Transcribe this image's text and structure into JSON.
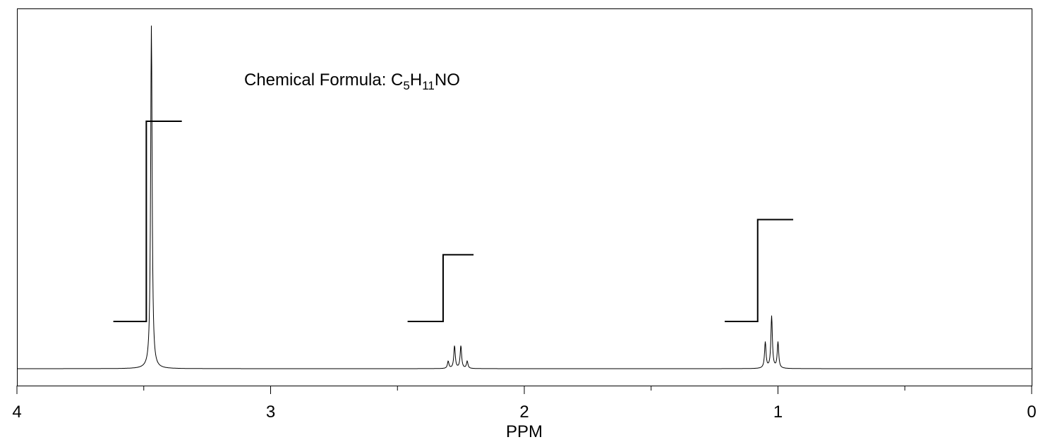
{
  "chart_data": {
    "type": "line",
    "title": "",
    "xlabel": "PPM",
    "ylabel": "",
    "xlim": [
      4,
      0
    ],
    "x_reversed": true,
    "x_ticks": [
      {
        "value": 4,
        "label": "4"
      },
      {
        "value": 3,
        "label": "3"
      },
      {
        "value": 2,
        "label": "2"
      },
      {
        "value": 1,
        "label": "1"
      },
      {
        "value": 0,
        "label": "0"
      }
    ],
    "x_minor_ticks": [
      3.5,
      2.5,
      1.5,
      0.5
    ],
    "annotation": {
      "prefix": "Chemical Formula: C",
      "sub1": "5",
      "mid": "H",
      "sub2": "11",
      "suffix": "NO"
    },
    "series": [
      {
        "peaks": [
          {
            "ppm": 3.47,
            "height": 1.0
          },
          {
            "ppm": 2.3,
            "height": 0.021
          },
          {
            "ppm": 2.275,
            "height": 0.066
          },
          {
            "ppm": 2.25,
            "height": 0.066
          },
          {
            "ppm": 2.225,
            "height": 0.021
          },
          {
            "ppm": 1.05,
            "height": 0.076
          },
          {
            "ppm": 1.025,
            "height": 0.152
          },
          {
            "ppm": 1.0,
            "height": 0.076
          }
        ]
      }
    ],
    "integrals": [
      {
        "start_ppm": 3.62,
        "end_ppm": 3.35,
        "step_ppm": 3.49,
        "value": 0.57
      },
      {
        "start_ppm": 2.46,
        "end_ppm": 2.2,
        "step_ppm": 2.32,
        "value": 0.19
      },
      {
        "start_ppm": 1.21,
        "end_ppm": 0.94,
        "step_ppm": 1.08,
        "value": 0.29
      }
    ],
    "grid": false,
    "legend": "none"
  }
}
